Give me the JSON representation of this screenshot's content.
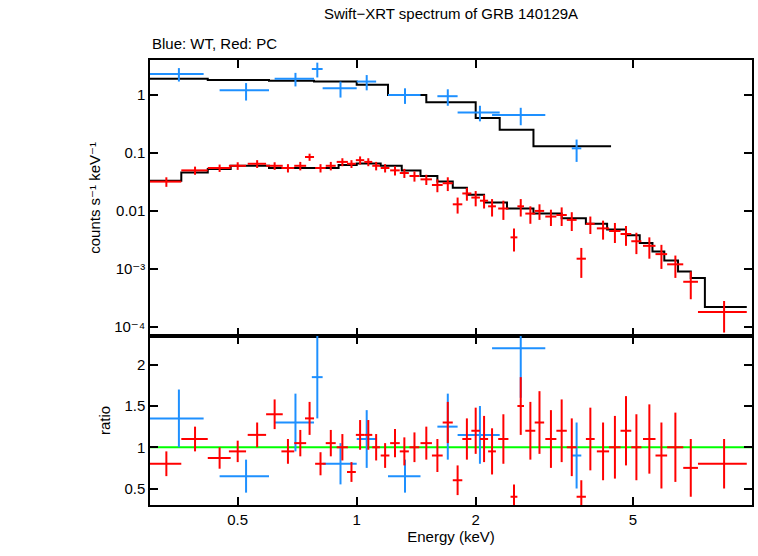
{
  "chart_data": [
    {
      "type": "scatter",
      "title": "Swift−XRT spectrum of GRB 140129A",
      "subtitle": "Blue: WT, Red: PC",
      "ylabel": "counts s⁻¹ keV⁻¹",
      "log": true,
      "tick_labels": "y",
      "xlim": [
        0.3,
        10
      ],
      "xticks": [
        0.5,
        1,
        2,
        5
      ],
      "ylim": [
        7e-05,
        4
      ],
      "yticks": [
        {
          "value": 0.0001,
          "label": "10⁻⁴"
        },
        {
          "value": 0.001,
          "label": "10⁻³"
        },
        0.01,
        0.1,
        1
      ],
      "series": [
        {
          "type": "line",
          "line_style": "step",
          "color": "#000000",
          "x": [
            0.3,
            0.42,
            0.6,
            0.78,
            1.0,
            1.2,
            1.5,
            2.0,
            2.3,
            2.8,
            4.4
          ],
          "values": [
            1.9,
            1.8,
            1.75,
            1.7,
            1.5,
            1.0,
            0.75,
            0.4,
            0.25,
            0.13,
            0.13
          ]
        },
        {
          "type": "line",
          "line_style": "step",
          "color": "#000000",
          "x": [
            0.3,
            0.36,
            0.42,
            0.48,
            0.6,
            0.9,
            1.0,
            1.15,
            1.3,
            1.45,
            1.6,
            1.75,
            1.9,
            2.1,
            2.4,
            2.8,
            3.3,
            3.8,
            4.3,
            4.8,
            5.2,
            5.6,
            6.0,
            6.5,
            7.0,
            7.6,
            9.7
          ],
          "values": [
            0.033,
            0.046,
            0.053,
            0.06,
            0.055,
            0.062,
            0.066,
            0.06,
            0.05,
            0.04,
            0.032,
            0.025,
            0.019,
            0.014,
            0.011,
            0.009,
            0.0075,
            0.006,
            0.0048,
            0.0038,
            0.0028,
            0.002,
            0.0014,
            0.0009,
            0.0007,
            0.00022,
            0.00022
          ]
        },
        {
          "type": "scatter",
          "marker": "none",
          "color": "#1e90ff",
          "x": [
            0.355,
            0.525,
            0.7,
            0.795,
            0.91,
            1.06,
            1.325,
            1.7,
            2.05,
            2.6,
            3.6
          ],
          "xerr": [
            0.055,
            0.075,
            0.08,
            0.025,
            0.09,
            0.06,
            0.125,
            0.1,
            0.25,
            0.4,
            0.1
          ],
          "values": [
            2.3,
            1.2,
            1.9,
            2.8,
            1.3,
            1.7,
            1.0,
            0.95,
            0.5,
            0.45,
            0.12
          ],
          "yerr": [
            0.6,
            0.4,
            0.5,
            0.8,
            0.4,
            0.5,
            0.3,
            0.3,
            0.15,
            0.15,
            0.05
          ]
        },
        {
          "type": "scatter",
          "marker": "none",
          "color": "#ff0000",
          "x": [
            0.33,
            0.39,
            0.45,
            0.5,
            0.56,
            0.62,
            0.67,
            0.72,
            0.76,
            0.81,
            0.86,
            0.92,
            0.97,
            1.02,
            1.07,
            1.12,
            1.18,
            1.25,
            1.32,
            1.4,
            1.5,
            1.6,
            1.7,
            1.8,
            1.9,
            2.0,
            2.1,
            2.2,
            2.35,
            2.5,
            2.6,
            2.75,
            2.9,
            3.1,
            3.3,
            3.5,
            3.7,
            3.9,
            4.2,
            4.5,
            4.8,
            5.1,
            5.5,
            5.9,
            6.4,
            7.0,
            8.5
          ],
          "xerr": [
            0.03,
            0.03,
            0.03,
            0.025,
            0.03,
            0.03,
            0.025,
            0.025,
            0.02,
            0.025,
            0.025,
            0.03,
            0.025,
            0.025,
            0.025,
            0.025,
            0.03,
            0.035,
            0.035,
            0.04,
            0.05,
            0.05,
            0.05,
            0.05,
            0.05,
            0.05,
            0.05,
            0.05,
            0.07,
            0.05,
            0.05,
            0.08,
            0.08,
            0.1,
            0.1,
            0.1,
            0.1,
            0.1,
            0.15,
            0.15,
            0.15,
            0.15,
            0.2,
            0.2,
            0.3,
            0.3,
            1.2
          ],
          "values": [
            0.032,
            0.05,
            0.055,
            0.06,
            0.065,
            0.06,
            0.055,
            0.06,
            0.085,
            0.055,
            0.06,
            0.07,
            0.065,
            0.075,
            0.07,
            0.06,
            0.055,
            0.05,
            0.045,
            0.04,
            0.035,
            0.028,
            0.03,
            0.013,
            0.02,
            0.017,
            0.015,
            0.012,
            0.011,
            0.0035,
            0.012,
            0.009,
            0.01,
            0.008,
            0.0085,
            0.007,
            0.0015,
            0.006,
            0.005,
            0.0045,
            0.004,
            0.003,
            0.0025,
            0.0018,
            0.0012,
            0.0006,
            0.00018
          ],
          "yerr": [
            0.006,
            0.008,
            0.008,
            0.009,
            0.01,
            0.009,
            0.009,
            0.01,
            0.012,
            0.009,
            0.01,
            0.011,
            0.01,
            0.012,
            0.011,
            0.01,
            0.009,
            0.009,
            0.008,
            0.008,
            0.007,
            0.007,
            0.008,
            0.004,
            0.005,
            0.005,
            0.004,
            0.004,
            0.004,
            0.0015,
            0.004,
            0.003,
            0.003,
            0.0025,
            0.003,
            0.0025,
            0.0008,
            0.002,
            0.0018,
            0.0017,
            0.0015,
            0.0012,
            0.001,
            0.0008,
            0.0005,
            0.0003,
            0.0001
          ]
        }
      ]
    },
    {
      "type": "scatter",
      "xlabel": "Energy (keV)",
      "ylabel": "ratio",
      "log": "x",
      "xlim": [
        0.3,
        10
      ],
      "xticks": [
        0.5,
        1,
        2,
        5
      ],
      "ylim": [
        0.3,
        2.35
      ],
      "yticks": [
        0.5,
        1,
        1.5,
        2
      ],
      "series": [
        {
          "type": "line",
          "color": "#00ff00",
          "x": [
            0.3,
            10
          ],
          "values": [
            1,
            1
          ]
        },
        {
          "type": "scatter",
          "marker": "none",
          "color": "#1e90ff",
          "x": [
            0.355,
            0.525,
            0.7,
            0.795,
            0.91,
            1.06,
            1.325,
            1.7,
            2.05,
            2.6,
            3.6
          ],
          "xerr": [
            0.055,
            0.075,
            0.08,
            0.025,
            0.09,
            0.06,
            0.125,
            0.1,
            0.25,
            0.4,
            0.1
          ],
          "values": [
            1.35,
            0.65,
            1.3,
            1.85,
            0.8,
            1.1,
            0.65,
            1.25,
            1.15,
            2.2,
            0.9
          ],
          "yerr": [
            0.35,
            0.2,
            0.35,
            0.5,
            0.25,
            0.35,
            0.2,
            0.4,
            0.35,
            0.6,
            0.4
          ]
        },
        {
          "type": "scatter",
          "marker": "none",
          "color": "#ff0000",
          "x": [
            0.33,
            0.39,
            0.45,
            0.5,
            0.56,
            0.62,
            0.67,
            0.72,
            0.76,
            0.81,
            0.86,
            0.92,
            0.97,
            1.02,
            1.07,
            1.12,
            1.18,
            1.25,
            1.32,
            1.4,
            1.5,
            1.6,
            1.7,
            1.8,
            1.9,
            2.0,
            2.1,
            2.2,
            2.35,
            2.5,
            2.6,
            2.75,
            2.9,
            3.1,
            3.3,
            3.5,
            3.7,
            3.9,
            4.2,
            4.5,
            4.8,
            5.1,
            5.5,
            5.9,
            6.4,
            7.0,
            8.5
          ],
          "xerr": [
            0.03,
            0.03,
            0.03,
            0.025,
            0.03,
            0.03,
            0.025,
            0.025,
            0.02,
            0.025,
            0.025,
            0.03,
            0.025,
            0.025,
            0.025,
            0.025,
            0.03,
            0.035,
            0.035,
            0.04,
            0.05,
            0.05,
            0.05,
            0.05,
            0.05,
            0.05,
            0.05,
            0.05,
            0.07,
            0.05,
            0.05,
            0.08,
            0.08,
            0.1,
            0.1,
            0.1,
            0.1,
            0.1,
            0.15,
            0.15,
            0.15,
            0.15,
            0.2,
            0.2,
            0.3,
            0.3,
            1.2
          ],
          "values": [
            0.8,
            1.1,
            0.87,
            0.95,
            1.15,
            1.4,
            0.95,
            1.05,
            1.35,
            0.8,
            1.05,
            1.0,
            0.7,
            1.15,
            1.15,
            1.0,
            0.9,
            1.05,
            0.95,
            1.0,
            1.05,
            0.9,
            1.3,
            0.6,
            1.1,
            1.2,
            1.1,
            0.95,
            1.1,
            0.4,
            1.5,
            1.2,
            1.3,
            1.1,
            1.2,
            1.0,
            0.4,
            1.1,
            0.95,
            1.0,
            1.2,
            1.0,
            1.1,
            0.9,
            1.0,
            0.75,
            0.8
          ],
          "yerr": [
            0.15,
            0.15,
            0.13,
            0.13,
            0.15,
            0.18,
            0.15,
            0.16,
            0.2,
            0.14,
            0.16,
            0.16,
            0.12,
            0.18,
            0.18,
            0.16,
            0.15,
            0.17,
            0.17,
            0.18,
            0.2,
            0.2,
            0.25,
            0.18,
            0.25,
            0.28,
            0.28,
            0.28,
            0.3,
            0.15,
            0.35,
            0.35,
            0.38,
            0.35,
            0.38,
            0.35,
            0.2,
            0.38,
            0.35,
            0.38,
            0.42,
            0.4,
            0.42,
            0.4,
            0.42,
            0.35,
            0.3
          ]
        }
      ]
    }
  ]
}
